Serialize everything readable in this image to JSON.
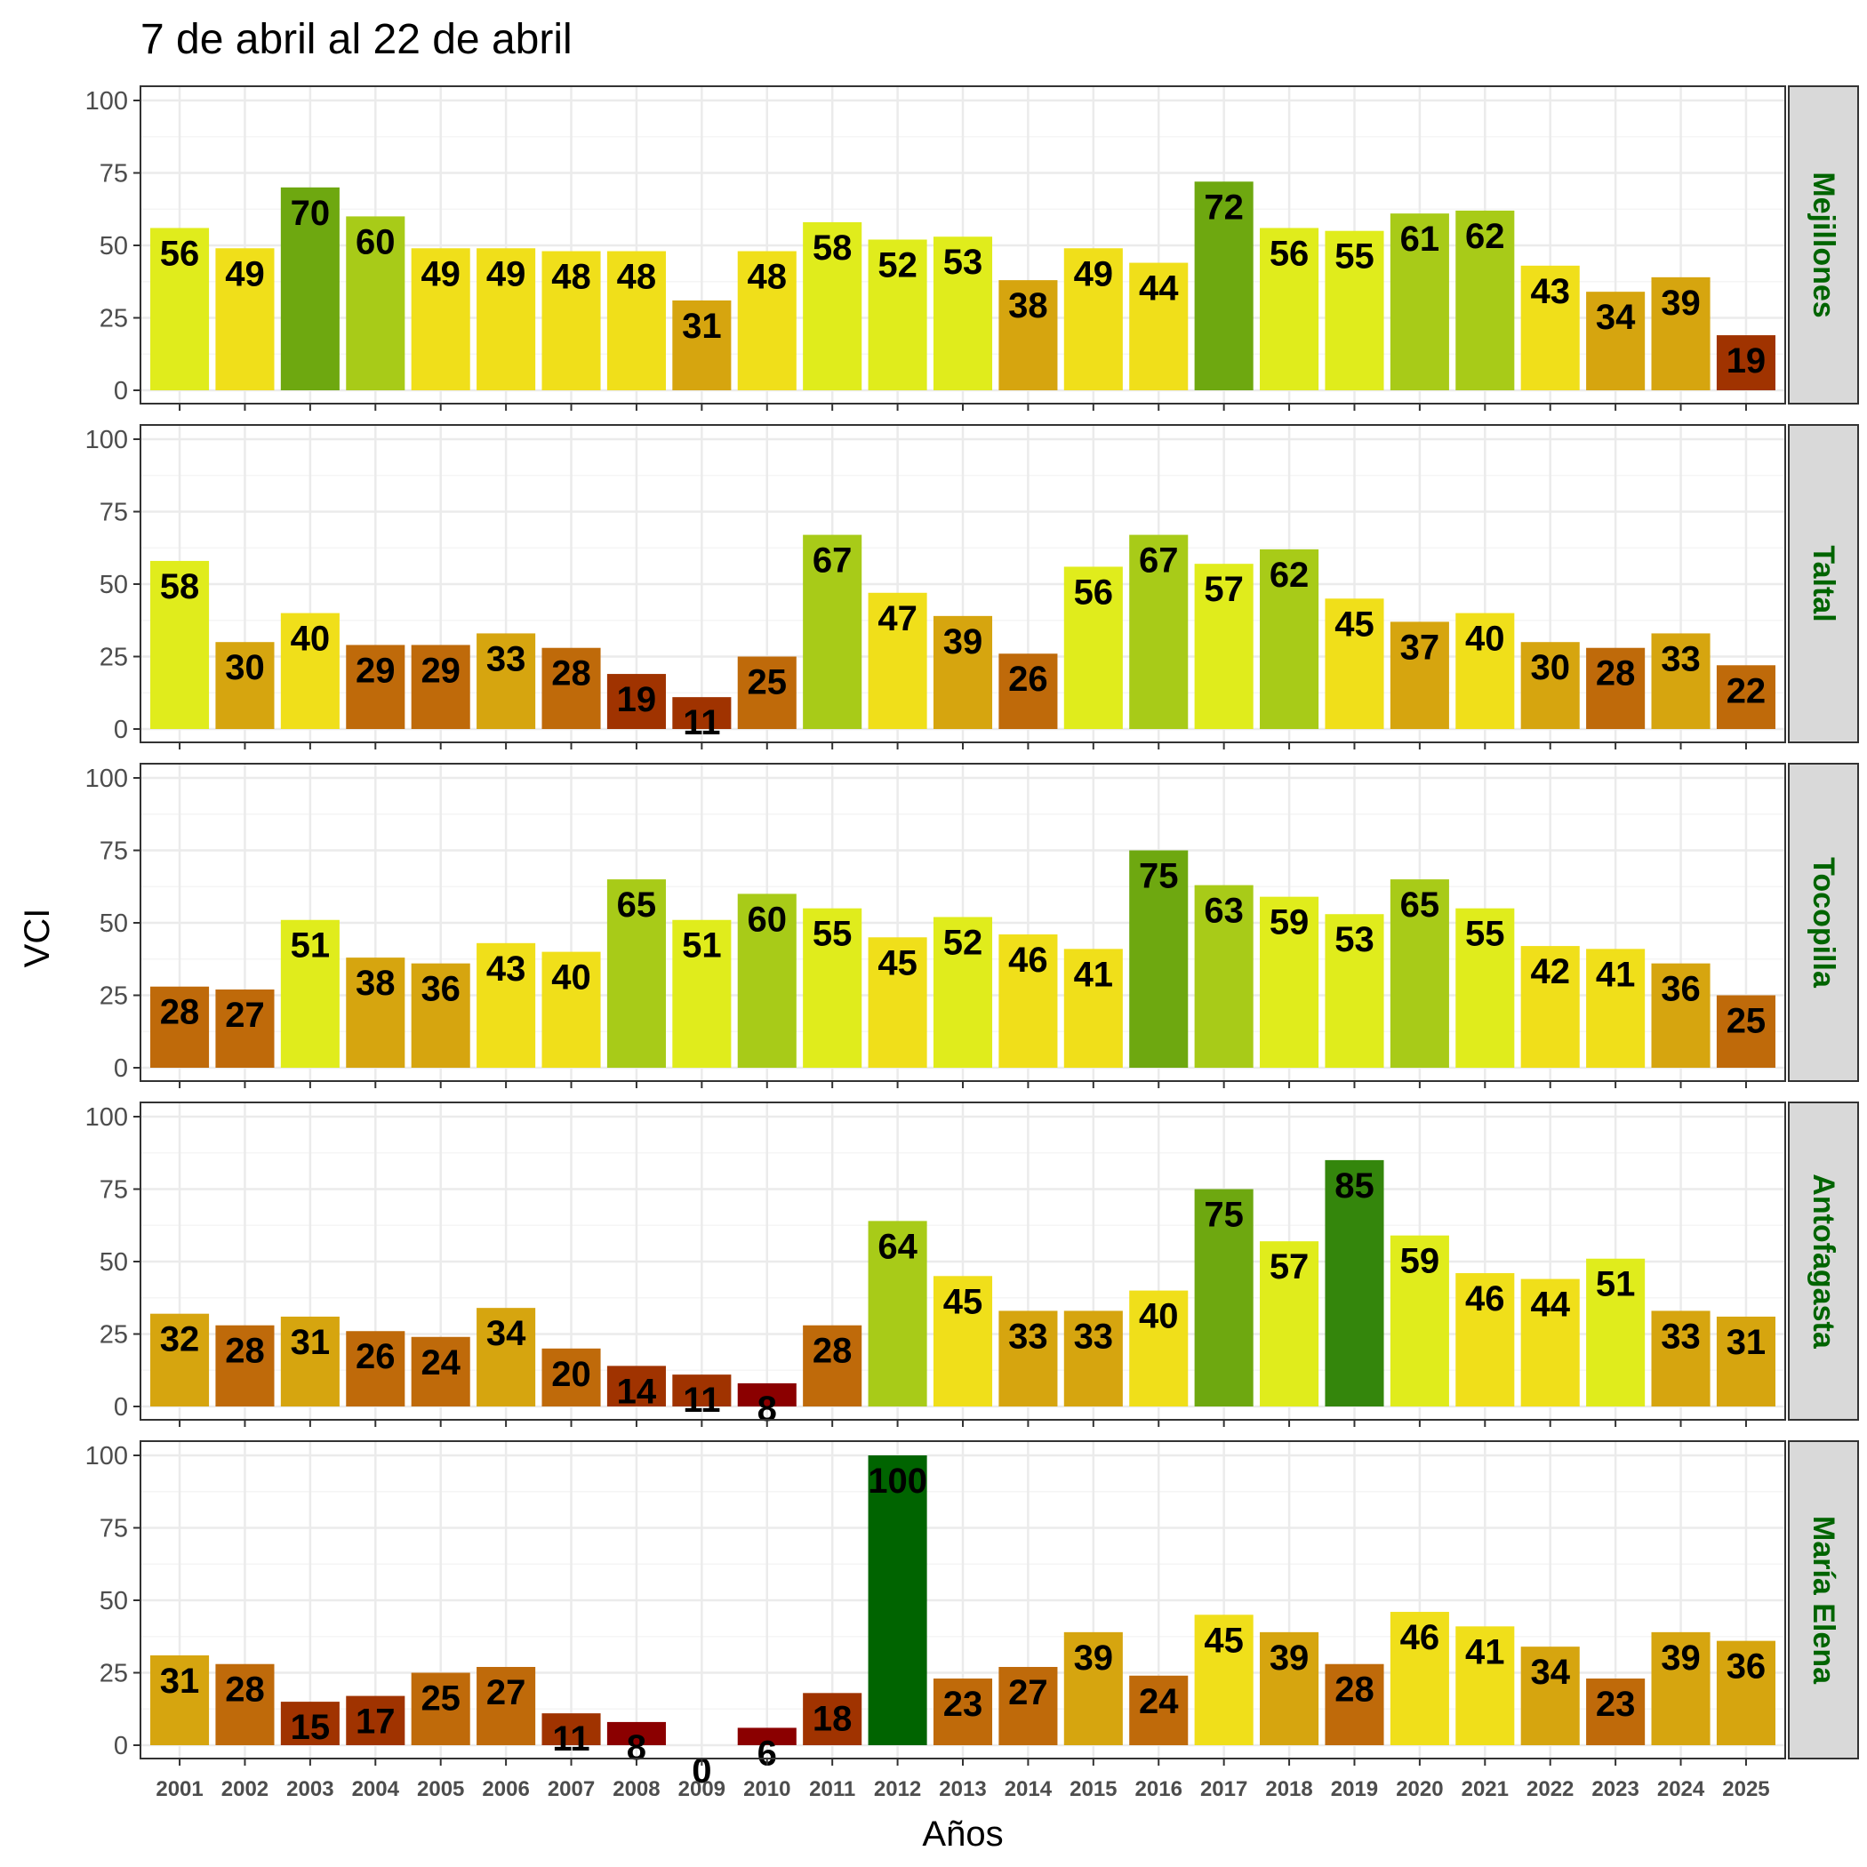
{
  "chart_data": {
    "type": "bar",
    "title": "7 de abril al 22 de abril",
    "xlabel": "Años",
    "ylabel": "VCI",
    "ylim": [
      0,
      100
    ],
    "yticks": [
      0,
      25,
      50,
      75,
      100
    ],
    "grid": true,
    "categories": [
      "2001",
      "2002",
      "2003",
      "2004",
      "2005",
      "2006",
      "2007",
      "2008",
      "2009",
      "2010",
      "2011",
      "2012",
      "2013",
      "2014",
      "2015",
      "2016",
      "2017",
      "2018",
      "2019",
      "2020",
      "2021",
      "2022",
      "2023",
      "2024",
      "2025"
    ],
    "panels": [
      {
        "name": "Mejillones",
        "values": [
          56,
          49,
          70,
          60,
          49,
          49,
          48,
          48,
          31,
          48,
          58,
          52,
          53,
          38,
          49,
          44,
          72,
          56,
          55,
          61,
          62,
          43,
          34,
          39,
          19
        ]
      },
      {
        "name": "Taltal",
        "values": [
          58,
          30,
          40,
          29,
          29,
          33,
          28,
          19,
          11,
          25,
          67,
          47,
          39,
          26,
          56,
          67,
          57,
          62,
          45,
          37,
          40,
          30,
          28,
          33,
          22
        ]
      },
      {
        "name": "Tocopilla",
        "values": [
          28,
          27,
          51,
          38,
          36,
          43,
          40,
          65,
          51,
          60,
          55,
          45,
          52,
          46,
          41,
          75,
          63,
          59,
          53,
          65,
          55,
          42,
          41,
          36,
          25
        ]
      },
      {
        "name": "Antofagasta",
        "values": [
          32,
          28,
          31,
          26,
          24,
          34,
          20,
          14,
          11,
          8,
          28,
          64,
          45,
          33,
          33,
          40,
          75,
          57,
          85,
          59,
          46,
          44,
          51,
          33,
          31
        ]
      },
      {
        "name": "María Elena",
        "values": [
          31,
          28,
          15,
          17,
          25,
          27,
          11,
          8,
          0,
          6,
          18,
          100,
          23,
          27,
          39,
          24,
          45,
          39,
          28,
          46,
          41,
          34,
          23,
          39,
          36
        ]
      }
    ],
    "color_scale": [
      {
        "min": 0,
        "color": "#8b0000"
      },
      {
        "min": 10,
        "color": "#a03300"
      },
      {
        "min": 20,
        "color": "#bf6a0a"
      },
      {
        "min": 30,
        "color": "#d6a50f"
      },
      {
        "min": 40,
        "color": "#f0df1a"
      },
      {
        "min": 50,
        "color": "#e0ec1c"
      },
      {
        "min": 60,
        "color": "#a8cb18"
      },
      {
        "min": 70,
        "color": "#6ea810"
      },
      {
        "min": 80,
        "color": "#34860c"
      },
      {
        "min": 90,
        "color": "#006400"
      }
    ],
    "colors": {
      "panel_border": "#333333",
      "grid_major": "#ebebeb",
      "grid_minor": "#f5f5f5",
      "strip_fill": "#d9d9d9",
      "strip_text": "#006400"
    }
  }
}
